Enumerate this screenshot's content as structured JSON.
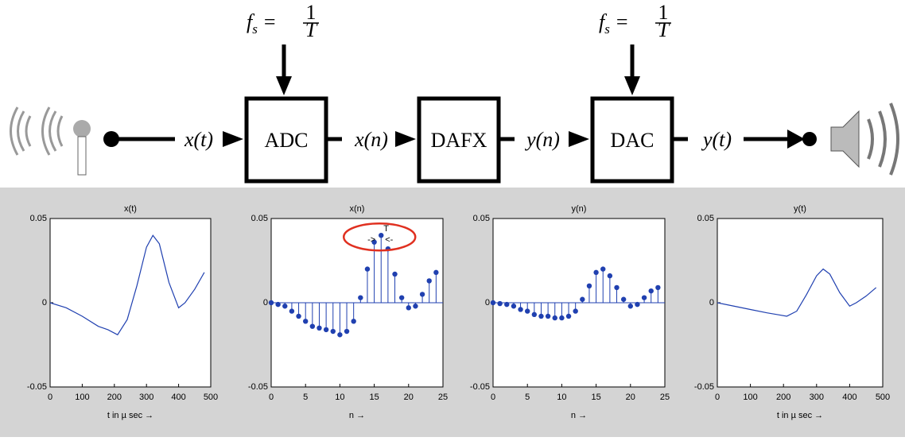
{
  "diagram": {
    "rates": [
      {
        "symbol": "f",
        "subscript": "s",
        "equals": "=",
        "numerator": "1",
        "denominator": "T"
      },
      {
        "symbol": "f",
        "subscript": "s",
        "equals": "=",
        "numerator": "1",
        "denominator": "T"
      }
    ],
    "signals": [
      "x(t)",
      "x(n)",
      "y(n)",
      "y(t)"
    ],
    "blocks": [
      "ADC",
      "DAFX",
      "DAC"
    ]
  },
  "chart_data": [
    {
      "type": "line",
      "title": "x(t)",
      "xlabel": "t in µ sec →",
      "color": "#2040b0",
      "x": [
        0,
        50,
        100,
        150,
        180,
        210,
        240,
        270,
        300,
        320,
        340,
        370,
        400,
        420,
        450,
        480
      ],
      "values": [
        0,
        -0.003,
        -0.008,
        -0.014,
        -0.016,
        -0.019,
        -0.01,
        0.01,
        0.033,
        0.04,
        0.035,
        0.012,
        -0.003,
        0,
        0.008,
        0.018
      ],
      "xlim": [
        0,
        500
      ],
      "xticks": [
        0,
        100,
        200,
        300,
        400,
        500
      ],
      "ylim": [
        -0.05,
        0.05
      ],
      "yticks": [
        -0.05,
        0,
        0.05
      ]
    },
    {
      "type": "stem",
      "title": "x(n)",
      "xlabel": "n →",
      "color": "#2040b0",
      "x": [
        0,
        1,
        2,
        3,
        4,
        5,
        6,
        7,
        8,
        9,
        10,
        11,
        12,
        13,
        14,
        15,
        16,
        17,
        18,
        19,
        20,
        21,
        22,
        23,
        24
      ],
      "values": [
        0,
        -0.001,
        -0.002,
        -0.005,
        -0.008,
        -0.011,
        -0.014,
        -0.015,
        -0.016,
        -0.017,
        -0.019,
        -0.017,
        -0.011,
        0.003,
        0.02,
        0.036,
        0.04,
        0.032,
        0.017,
        0.003,
        -0.003,
        -0.002,
        0.005,
        0.013,
        0.018
      ],
      "annotations": [
        "T",
        "->",
        "<-"
      ],
      "xlim": [
        0,
        25
      ],
      "xticks": [
        0,
        5,
        10,
        15,
        20,
        25
      ],
      "ylim": [
        -0.05,
        0.05
      ],
      "yticks": [
        -0.05,
        0,
        0.05
      ]
    },
    {
      "type": "stem",
      "title": "y(n)",
      "xlabel": "n →",
      "color": "#2040b0",
      "x": [
        0,
        1,
        2,
        3,
        4,
        5,
        6,
        7,
        8,
        9,
        10,
        11,
        12,
        13,
        14,
        15,
        16,
        17,
        18,
        19,
        20,
        21,
        22,
        23,
        24
      ],
      "values": [
        0,
        -0.0005,
        -0.001,
        -0.002,
        -0.004,
        -0.005,
        -0.007,
        -0.008,
        -0.008,
        -0.009,
        -0.009,
        -0.008,
        -0.005,
        0.002,
        0.01,
        0.018,
        0.02,
        0.016,
        0.009,
        0.002,
        -0.002,
        -0.001,
        0.003,
        0.007,
        0.009
      ],
      "xlim": [
        0,
        25
      ],
      "xticks": [
        0,
        5,
        10,
        15,
        20,
        25
      ],
      "ylim": [
        -0.05,
        0.05
      ],
      "yticks": [
        -0.05,
        0,
        0.05
      ]
    },
    {
      "type": "line",
      "title": "y(t)",
      "xlabel": "t in µ sec →",
      "color": "#2040b0",
      "x": [
        0,
        50,
        100,
        150,
        180,
        210,
        240,
        270,
        300,
        320,
        340,
        370,
        400,
        420,
        450,
        480
      ],
      "values": [
        0,
        -0.002,
        -0.004,
        -0.006,
        -0.007,
        -0.008,
        -0.005,
        0.005,
        0.016,
        0.02,
        0.017,
        0.006,
        -0.002,
        0,
        0.004,
        0.009
      ],
      "xlim": [
        0,
        500
      ],
      "xticks": [
        0,
        100,
        200,
        300,
        400,
        500
      ],
      "ylim": [
        -0.05,
        0.05
      ],
      "yticks": [
        -0.05,
        0,
        0.05
      ]
    }
  ]
}
